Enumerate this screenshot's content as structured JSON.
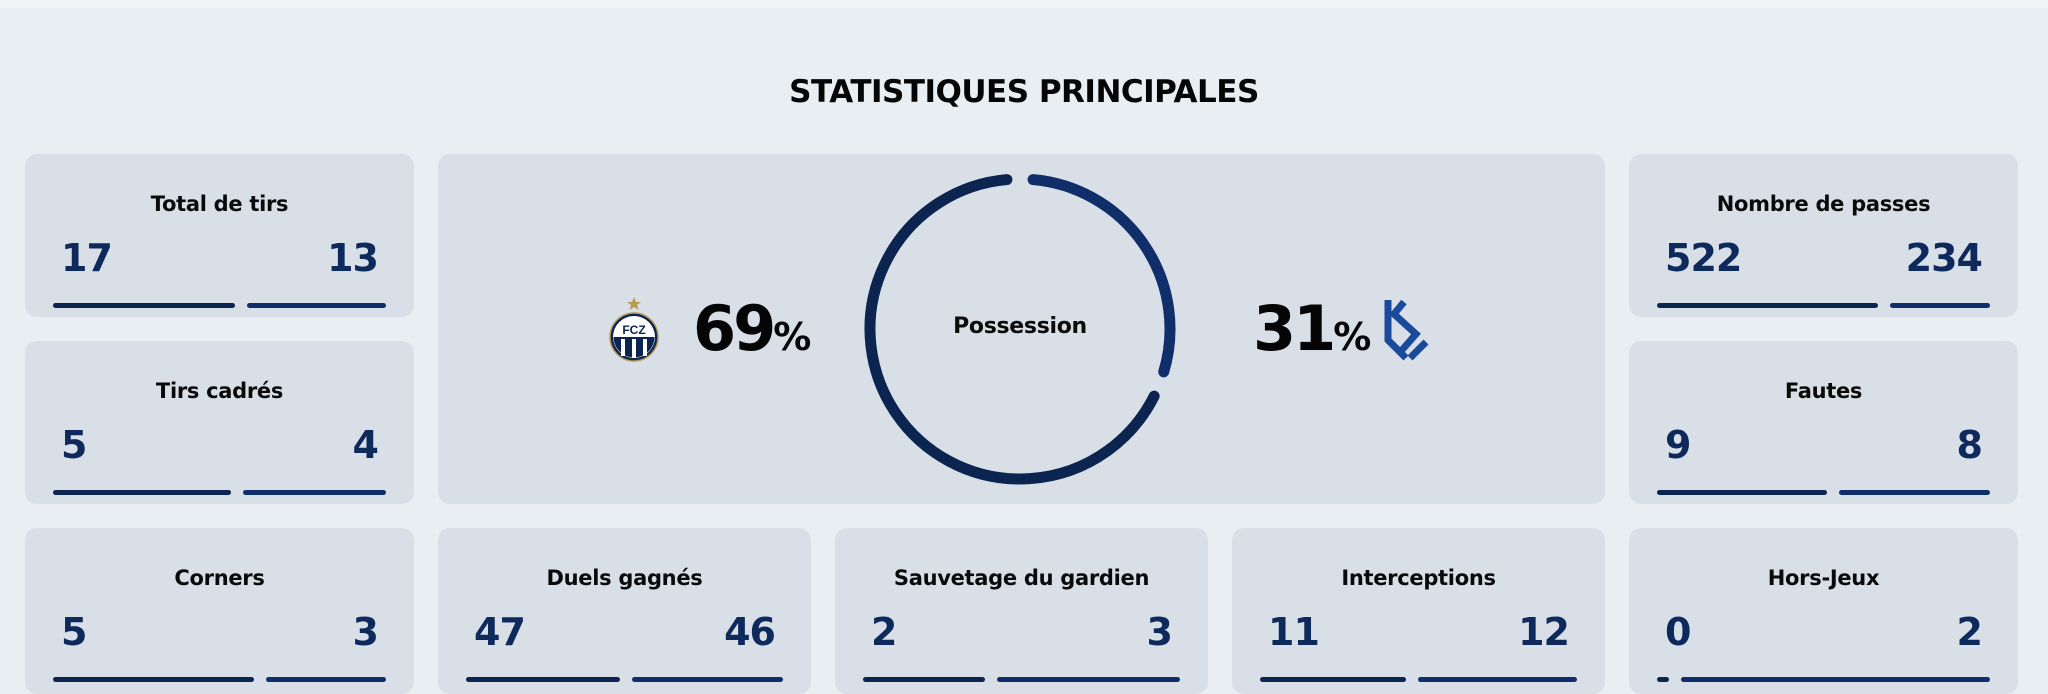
{
  "section_title": "STATISTIQUES PRINCIPALES",
  "colors": {
    "navy": "#0b2450",
    "blue": "#102e6a",
    "card": "#d9dfe6",
    "bg": "#e9eef2"
  },
  "possession": {
    "label": "Possession",
    "home_value": "69",
    "away_value": "31",
    "unit": "%",
    "home_fraction": 0.69,
    "away_fraction": 0.31,
    "home_logo_text": "FCZ",
    "home_logo_icon": "fc-zurich-crest-icon",
    "away_logo_icon": "lausanne-sport-logo-icon"
  },
  "stats": {
    "total_tirs": {
      "label": "Total de tirs",
      "home": "17",
      "away": "13",
      "home_fraction": 0.567
    },
    "tirs_cadres": {
      "label": "Tirs cadrés",
      "home": "5",
      "away": "4",
      "home_fraction": 0.556
    },
    "corners": {
      "label": "Corners",
      "home": "5",
      "away": "3",
      "home_fraction": 0.625
    },
    "duels": {
      "label": "Duels gagnés",
      "home": "47",
      "away": "46",
      "home_fraction": 0.505
    },
    "sauvetage": {
      "label": "Sauvetage du gardien",
      "home": "2",
      "away": "3",
      "home_fraction": 0.4
    },
    "interceptions": {
      "label": "Interceptions",
      "home": "11",
      "away": "12",
      "home_fraction": 0.478
    },
    "passes": {
      "label": "Nombre de passes",
      "home": "522",
      "away": "234",
      "home_fraction": 0.69
    },
    "fautes": {
      "label": "Fautes",
      "home": "9",
      "away": "8",
      "home_fraction": 0.529
    },
    "hors_jeux": {
      "label": "Hors-Jeux",
      "home": "0",
      "away": "2",
      "home_fraction": 0.0
    }
  }
}
